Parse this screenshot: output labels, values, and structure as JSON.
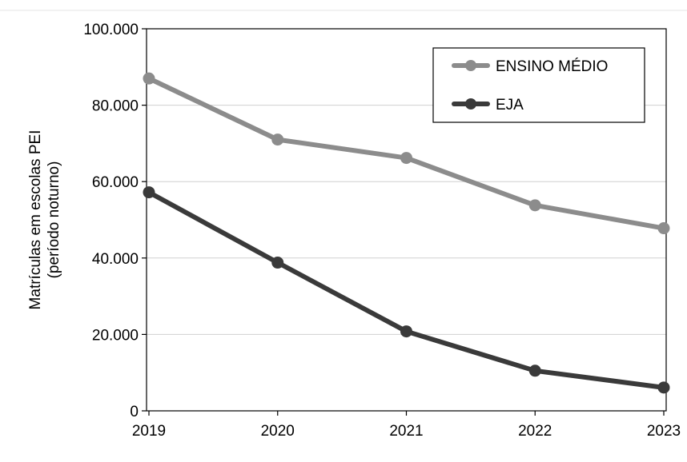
{
  "chart_data": {
    "type": "line",
    "x": [
      "2019",
      "2020",
      "2021",
      "2022",
      "2023"
    ],
    "series": [
      {
        "name": "ENSINO MÉDIO",
        "color": "#8c8c8c",
        "values": [
          87000,
          71000,
          66200,
          53800,
          47800
        ]
      },
      {
        "name": "EJA",
        "color": "#3a3a3a",
        "values": [
          57200,
          38800,
          20800,
          10500,
          6100
        ]
      }
    ],
    "xlabel": "",
    "ylabel_line1": "Matrículas em escolas PEI",
    "ylabel_line2": "(período noturno)",
    "ylim": [
      0,
      100000
    ],
    "yticks": [
      0,
      20000,
      40000,
      60000,
      80000,
      100000
    ],
    "ytick_labels": [
      "0",
      "20.000",
      "40.000",
      "60.000",
      "80.000",
      "100.000"
    ],
    "grid": true,
    "legend_position": "top-right"
  }
}
